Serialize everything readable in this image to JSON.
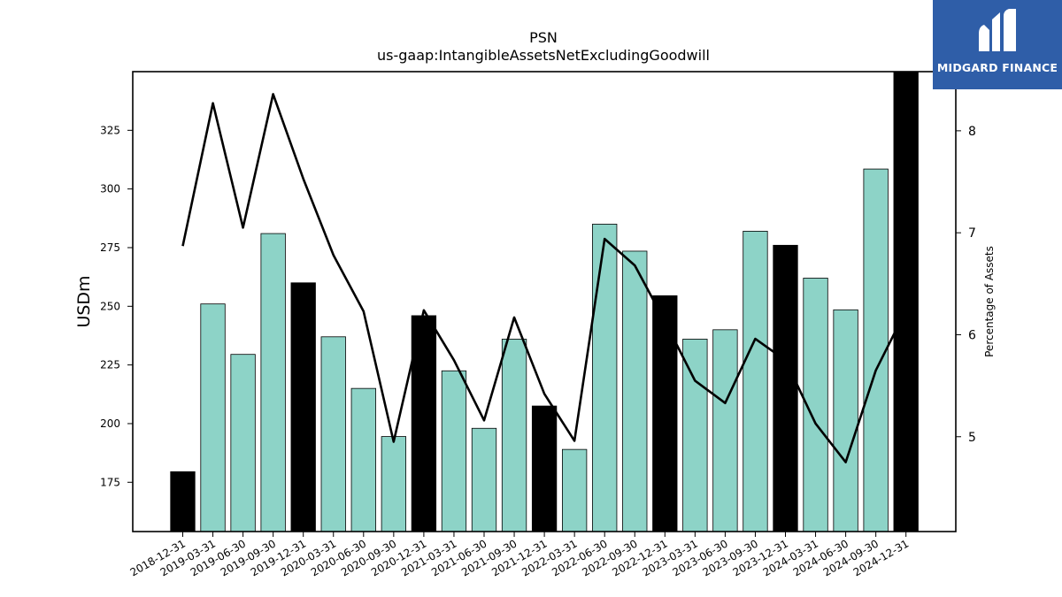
{
  "brand": {
    "name": "MIDGARD FINANCE",
    "bg_color": "#2f5ea8"
  },
  "chart_data": {
    "type": "bar",
    "title": "PSN",
    "subtitle": "us-gaap:IntangibleAssetsNetExcludingGoodwill",
    "ylabel": "USDm",
    "y2label": "Percentage of Assets",
    "ylim": [
      154,
      350
    ],
    "y2lim": [
      4.07,
      8.58
    ],
    "yticks": [
      175,
      200,
      225,
      250,
      275,
      300,
      325
    ],
    "y2ticks": [
      5,
      6,
      7,
      8
    ],
    "grid": false,
    "categories": [
      "2018-12-31",
      "2019-03-31",
      "2019-06-30",
      "2019-09-30",
      "2019-12-31",
      "2020-03-31",
      "2020-06-30",
      "2020-09-30",
      "2020-12-31",
      "2021-03-31",
      "2021-06-30",
      "2021-09-30",
      "2021-12-31",
      "2022-03-31",
      "2022-06-30",
      "2022-09-30",
      "2022-12-31",
      "2023-03-31",
      "2023-06-30",
      "2023-09-30",
      "2023-12-31",
      "2024-03-31",
      "2024-06-30",
      "2024-09-30",
      "2024-12-31"
    ],
    "series": [
      {
        "kind": "bar",
        "values": [
          179.5,
          251,
          229.5,
          281,
          260,
          237,
          215,
          194.5,
          246,
          222.5,
          198,
          236,
          207.5,
          189,
          285,
          273.5,
          254.5,
          236,
          240,
          282,
          276,
          262,
          248.5,
          308.5,
          350
        ],
        "colors": [
          "#000000",
          "#8dd3c7",
          "#8dd3c7",
          "#8dd3c7",
          "#000000",
          "#8dd3c7",
          "#8dd3c7",
          "#8dd3c7",
          "#000000",
          "#8dd3c7",
          "#8dd3c7",
          "#8dd3c7",
          "#000000",
          "#8dd3c7",
          "#8dd3c7",
          "#8dd3c7",
          "#000000",
          "#8dd3c7",
          "#8dd3c7",
          "#8dd3c7",
          "#000000",
          "#8dd3c7",
          "#8dd3c7",
          "#8dd3c7",
          "#000000"
        ]
      },
      {
        "kind": "line",
        "axis": "right",
        "color": "#000000",
        "values": [
          6.87,
          8.27,
          7.05,
          8.36,
          7.53,
          6.78,
          6.23,
          4.95,
          6.24,
          5.75,
          5.16,
          6.17,
          5.42,
          4.96,
          6.94,
          6.68,
          6.13,
          5.55,
          5.33,
          5.96,
          5.75,
          5.13,
          4.75,
          5.65,
          6.24
        ]
      }
    ]
  }
}
